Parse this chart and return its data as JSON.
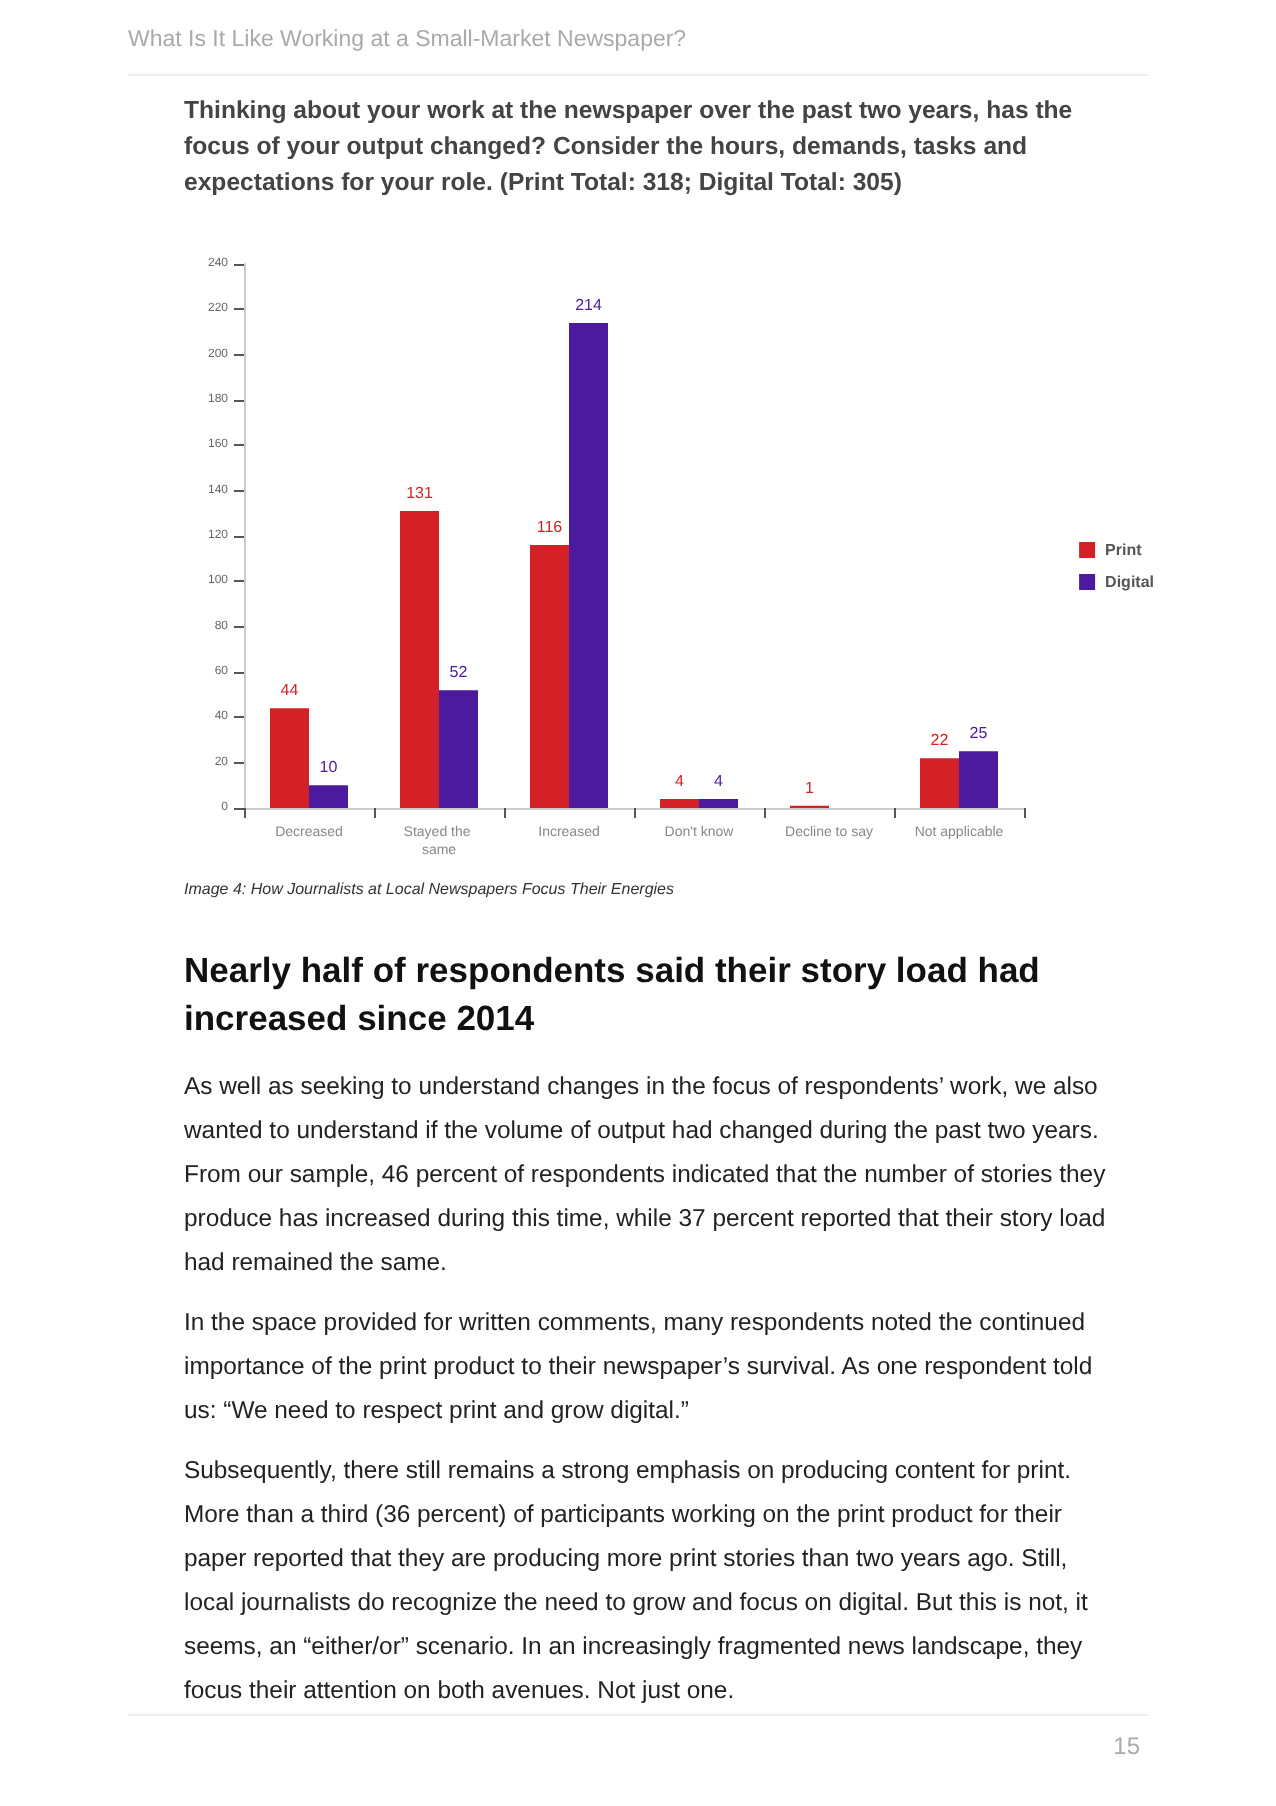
{
  "chart_data": {
    "type": "bar",
    "title": "Thinking about your work at the newspaper over the past two years, has the focus of your output changed? Consider the hours, demands, tasks and expectations for your role. (Print Total: 318; Digital Total: 305)",
    "categories": [
      "Decreased",
      "Stayed the same",
      "Increased",
      "Don't know",
      "Decline to say",
      "Not applicable"
    ],
    "series": [
      {
        "name": "Print",
        "color": "#d42027",
        "values": [
          44,
          131,
          116,
          4,
          1,
          22
        ]
      },
      {
        "name": "Digital",
        "color": "#4b1a9e",
        "values": [
          10,
          52,
          214,
          4,
          null,
          25
        ]
      }
    ],
    "ylim": [
      0,
      240
    ],
    "yticks": [
      0,
      20,
      40,
      60,
      80,
      100,
      120,
      140,
      160,
      180,
      200,
      220,
      240
    ],
    "grid": false,
    "legend": "right",
    "data_labels": true,
    "annotations": [
      "What Is It Like Working at a Small-Market Newspaper?",
      "Image 4: How Journalists at Local Newspapers Focus Their Energies",
      "Nearly half of respondents said their story load had increased since 2014",
      "As well as seeking to understand changes in the focus of respondents’ work, we also wanted to understand if the volume of output had changed during the past two years. From our sample, 46 percent of respondents indicated that the number of stories they produce has increased during this time, while 37 percent reported that their story load had remained the same.",
      "In the space provided for written comments, many respondents noted the continued importance of the print product to their newspaper’s survival. As one respondent told us: “We need to respect print and grow digital.”",
      "Subsequently, there still remains a strong emphasis on producing content for print. More than a third (36 percent) of participants working on the print product for their paper reported that they are producing more print stories than two years ago. Still, local journalists do recognize the need to grow and focus on digital. But this is not, it seems, an “either/or” scenario. In an increasingly fragmented news landscape, they focus their attention on both avenues. Not just one.",
      "15"
    ]
  }
}
